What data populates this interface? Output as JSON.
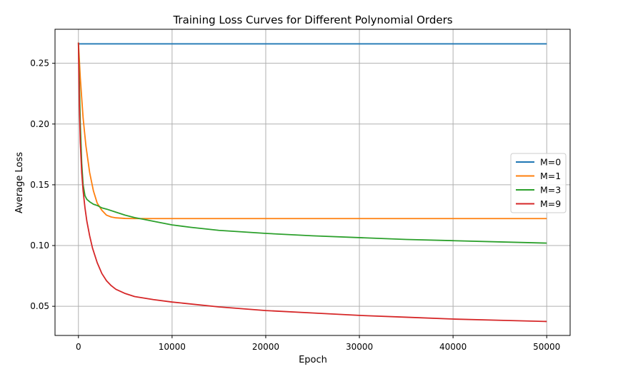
{
  "chart_data": {
    "type": "line",
    "title": "Training Loss Curves for Different Polynomial Orders",
    "xlabel": "Epoch",
    "ylabel": "Average Loss",
    "xlim": [
      -2500,
      52500
    ],
    "ylim": [
      0.026,
      0.278
    ],
    "xticks": [
      0,
      10000,
      20000,
      30000,
      40000,
      50000
    ],
    "yticks": [
      0.05,
      0.1,
      0.15,
      0.2,
      0.25
    ],
    "ytick_labels": [
      "0.05",
      "0.10",
      "0.15",
      "0.20",
      "0.25"
    ],
    "grid": true,
    "legend_position": "center-right",
    "series": [
      {
        "name": "M=0",
        "color": "#1f77b4",
        "x": [
          0,
          50000
        ],
        "y": [
          0.266,
          0.266
        ]
      },
      {
        "name": "M=1",
        "color": "#ff7f0e",
        "x": [
          0,
          200,
          500,
          800,
          1200,
          1600,
          2000,
          2500,
          3000,
          3500,
          4000,
          5000,
          6000,
          8000,
          10000,
          20000,
          30000,
          40000,
          50000
        ],
        "y": [
          0.267,
          0.238,
          0.205,
          0.182,
          0.16,
          0.145,
          0.135,
          0.129,
          0.125,
          0.1235,
          0.1228,
          0.1223,
          0.1222,
          0.1222,
          0.1222,
          0.1222,
          0.1222,
          0.1222,
          0.1222
        ]
      },
      {
        "name": "M=3",
        "color": "#2ca02c",
        "x": [
          0,
          100,
          200,
          350,
          500,
          700,
          900,
          1200,
          1600,
          2000,
          2500,
          3000,
          4000,
          5000,
          6000,
          7000,
          8000,
          10000,
          12000,
          15000,
          20000,
          25000,
          30000,
          35000,
          40000,
          45000,
          50000
        ],
        "y": [
          0.267,
          0.235,
          0.2,
          0.168,
          0.15,
          0.141,
          0.138,
          0.136,
          0.134,
          0.133,
          0.131,
          0.13,
          0.1275,
          0.125,
          0.123,
          0.1215,
          0.12,
          0.117,
          0.115,
          0.1125,
          0.11,
          0.108,
          0.1065,
          0.105,
          0.104,
          0.103,
          0.102
        ]
      },
      {
        "name": "M=9",
        "color": "#d62728",
        "x": [
          0,
          100,
          200,
          350,
          500,
          700,
          900,
          1200,
          1500,
          2000,
          2500,
          3000,
          3500,
          4000,
          5000,
          6000,
          8000,
          10000,
          15000,
          20000,
          25000,
          30000,
          35000,
          40000,
          45000,
          50000
        ],
        "y": [
          0.267,
          0.215,
          0.185,
          0.16,
          0.145,
          0.131,
          0.12,
          0.108,
          0.098,
          0.086,
          0.077,
          0.071,
          0.067,
          0.064,
          0.0605,
          0.058,
          0.0555,
          0.0535,
          0.0495,
          0.0465,
          0.0445,
          0.0425,
          0.041,
          0.0395,
          0.0385,
          0.0375
        ]
      }
    ]
  }
}
